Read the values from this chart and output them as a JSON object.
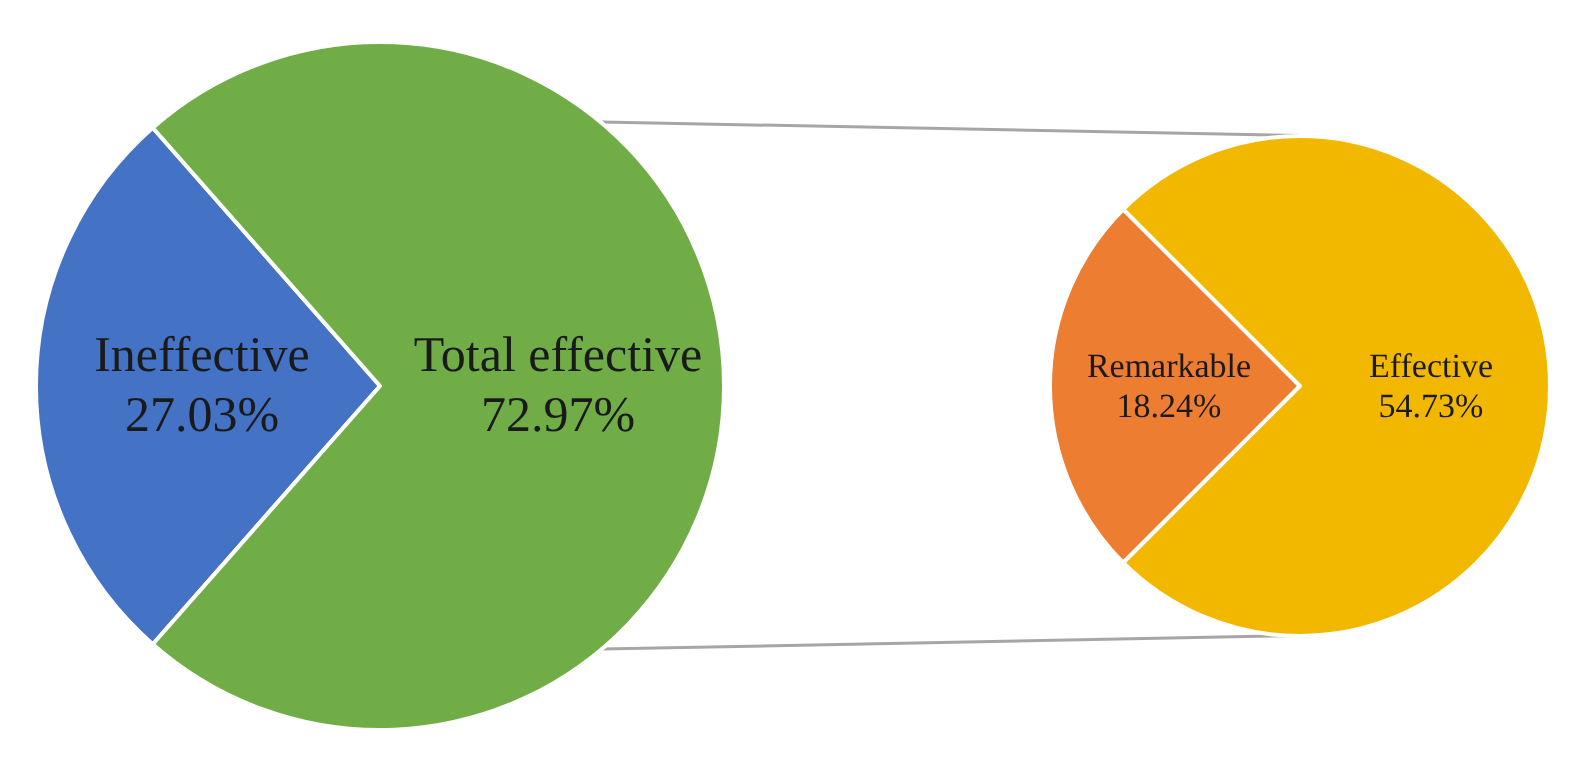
{
  "chart_data": [
    {
      "type": "pie",
      "categories": [
        "Ineffective",
        "Total effective"
      ],
      "values": [
        27.03,
        72.97
      ],
      "value_labels": [
        "27.03%",
        "72.97%"
      ],
      "colors": [
        "#4472c4",
        "#70ad47"
      ],
      "legend": false
    },
    {
      "type": "pie",
      "categories": [
        "Remarkable",
        "Effective"
      ],
      "values": [
        18.24,
        54.73
      ],
      "value_labels": [
        "18.24%",
        "54.73%"
      ],
      "colors": [
        "#ed7d31",
        "#f2b800"
      ],
      "legend": false
    }
  ]
}
